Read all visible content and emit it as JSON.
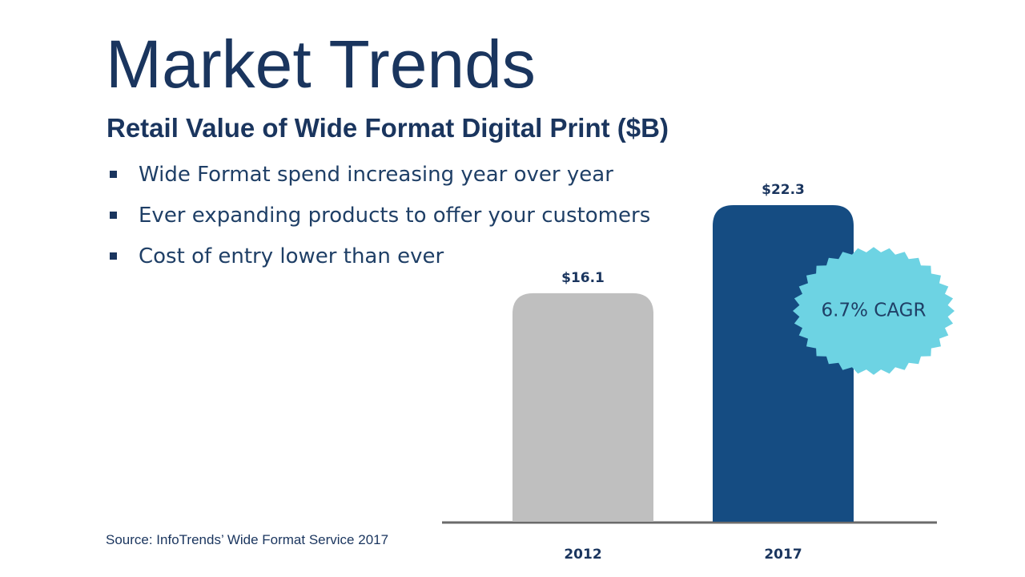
{
  "slide": {
    "title": "Market Trends",
    "subtitle": "Retail Value of Wide Format Digital Print ($B)",
    "bullets": [
      "Wide Format spend increasing year over year",
      "Ever expanding products to offer your customers",
      "Cost of entry lower than ever"
    ],
    "source": "Source: InfoTrends’  Wide Format Service  2017",
    "badge": "6.7% CAGR"
  },
  "colors": {
    "title": "#1a355e",
    "bar_2012": "#bfbfbf",
    "bar_2017": "#154c82",
    "badge": "#6dd3e3",
    "axis": "#6b6b6b"
  },
  "chart_data": {
    "type": "bar",
    "categories": [
      "2012",
      "2017"
    ],
    "values": [
      16.1,
      22.3
    ],
    "value_labels": [
      "$16.1",
      "$22.3"
    ],
    "colors": [
      "#bfbfbf",
      "#154c82"
    ],
    "title": "Retail Value of Wide Format Digital Print ($B)",
    "xlabel": "",
    "ylabel": "",
    "ylim": [
      0,
      22.3
    ],
    "grid": false,
    "legend": "none",
    "annotation": "6.7% CAGR"
  }
}
